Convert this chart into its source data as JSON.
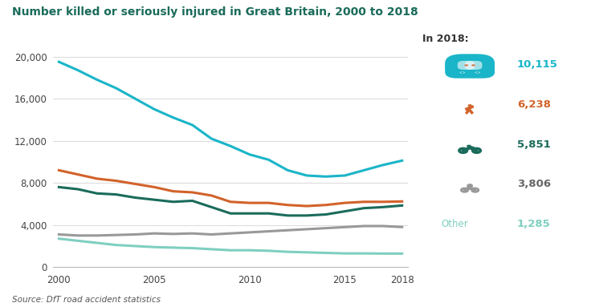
{
  "title": "Number killed or seriously injured in Great Britain, 2000 to 2018",
  "source": "Source: DfT road accident statistics",
  "years": [
    2000,
    2001,
    2002,
    2003,
    2004,
    2005,
    2006,
    2007,
    2008,
    2009,
    2010,
    2011,
    2012,
    2013,
    2014,
    2015,
    2016,
    2017,
    2018
  ],
  "car": [
    19500,
    18700,
    17800,
    17000,
    16000,
    15000,
    14200,
    13500,
    12200,
    11500,
    10700,
    10200,
    9200,
    8700,
    8600,
    8700,
    9200,
    9700,
    10115
  ],
  "pedestrian": [
    9200,
    8800,
    8400,
    8200,
    7900,
    7600,
    7200,
    7100,
    6800,
    6200,
    6100,
    6100,
    5900,
    5800,
    5900,
    6100,
    6200,
    6200,
    6238
  ],
  "motorcycle": [
    7600,
    7400,
    7000,
    6900,
    6600,
    6400,
    6200,
    6300,
    5700,
    5100,
    5100,
    5100,
    4900,
    4900,
    5000,
    5300,
    5600,
    5700,
    5851
  ],
  "cyclist": [
    3100,
    3000,
    3000,
    3050,
    3100,
    3200,
    3150,
    3200,
    3100,
    3200,
    3300,
    3400,
    3500,
    3600,
    3700,
    3800,
    3900,
    3900,
    3806
  ],
  "other": [
    2700,
    2500,
    2300,
    2100,
    2000,
    1900,
    1850,
    1800,
    1700,
    1600,
    1600,
    1550,
    1450,
    1400,
    1350,
    1300,
    1300,
    1285,
    1285
  ],
  "colors": {
    "car": "#1ab5c8",
    "pedestrian": "#d2622a",
    "motorcycle": "#1a6b5a",
    "cyclist": "#999999",
    "other": "#7fcfc0"
  },
  "legend_values": {
    "car": "10,115",
    "pedestrian": "6,238",
    "motorcycle": "5,851",
    "cyclist": "3,806",
    "other": "1,285"
  },
  "legend_value_colors": {
    "car": "#1ab5c8",
    "pedestrian": "#d2622a",
    "motorcycle": "#1a6b5a",
    "cyclist": "#666666",
    "other": "#7fcfc0"
  },
  "ylim": [
    0,
    21000
  ],
  "yticks": [
    0,
    4000,
    8000,
    12000,
    16000,
    20000
  ],
  "title_color": "#1a6b5a",
  "background_color": "#ffffff",
  "in2018_label": "In 2018:",
  "other_label": "Other"
}
